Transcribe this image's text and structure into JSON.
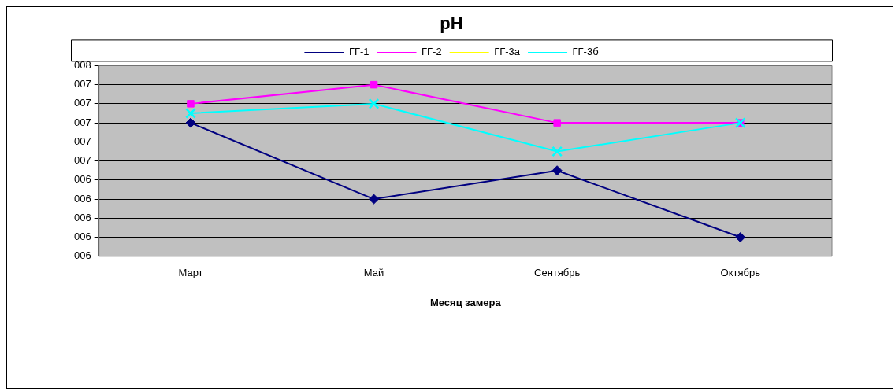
{
  "chart_data": {
    "type": "line",
    "title": "pH",
    "xlabel": "Месяц замера",
    "categories": [
      "Март",
      "Май",
      "Сентябрь",
      "Октябрь"
    ],
    "series": [
      {
        "name": "ГГ-1",
        "color": "#000080",
        "marker": "diamond",
        "values": [
          7.0,
          6.2,
          6.5,
          5.8
        ]
      },
      {
        "name": "ГГ-2",
        "color": "#ff00ff",
        "marker": "square",
        "values": [
          7.2,
          7.4,
          7.0,
          7.0
        ]
      },
      {
        "name": "ГГ-3а",
        "color": "#ffff00",
        "marker": "triangle",
        "values": [
          null,
          null,
          null,
          null
        ]
      },
      {
        "name": "ГГ-3б",
        "color": "#00ffff",
        "marker": "cross",
        "values": [
          7.1,
          7.2,
          6.7,
          7.0
        ]
      }
    ],
    "ylim": [
      5.6,
      7.6
    ],
    "yticks": [
      {
        "value": 5.6,
        "label": "006"
      },
      {
        "value": 5.8,
        "label": "006"
      },
      {
        "value": 6.0,
        "label": "006"
      },
      {
        "value": 6.2,
        "label": "006"
      },
      {
        "value": 6.4,
        "label": "006"
      },
      {
        "value": 6.6,
        "label": "007"
      },
      {
        "value": 6.8,
        "label": "007"
      },
      {
        "value": 7.0,
        "label": "007"
      },
      {
        "value": 7.2,
        "label": "007"
      },
      {
        "value": 7.4,
        "label": "007"
      },
      {
        "value": 7.6,
        "label": "008"
      }
    ],
    "grid": "y",
    "legend": "top",
    "line_style": "solid"
  }
}
